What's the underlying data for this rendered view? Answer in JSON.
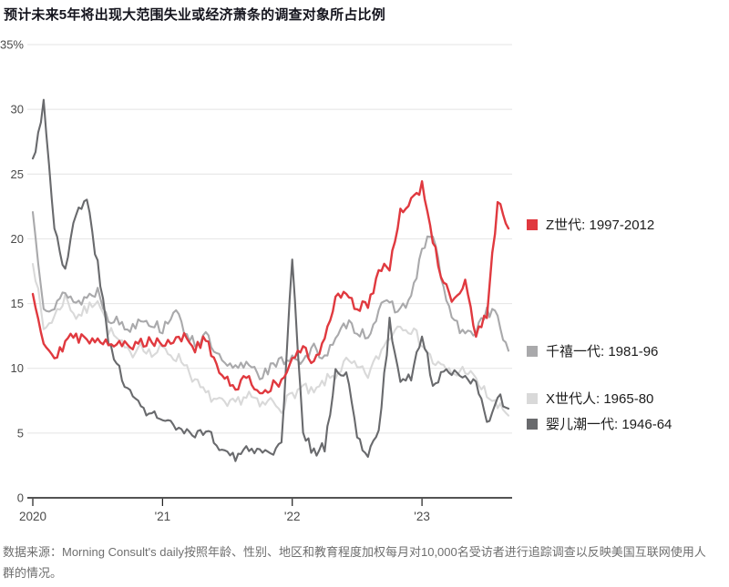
{
  "title": "预计未来5年将出现大范围失业或经济萧条的调查对象所占比例",
  "source_note": "数据来源：Morning Consult's daily按照年龄、性别、地区和教育程度加权每月对10,000名受访者进行追踪调查以反映美国互联网使用人群的情况。",
  "chart_data": {
    "type": "line",
    "title": "预计未来5年将出现大范围失业或经济萧条的调查对象所占比例",
    "x_unit": "month",
    "x_start": "2020-01",
    "x_tick_labels": [
      "2020",
      "'21",
      "'22",
      "'23"
    ],
    "x_tick_months": [
      0,
      12,
      24,
      36
    ],
    "ylim": [
      0,
      35
    ],
    "yticks": [
      0,
      5,
      10,
      15,
      20,
      25,
      30,
      35
    ],
    "y_top_label": "35%",
    "grid": true,
    "legend_position": "right",
    "axis_color": "#1a1a1a",
    "grid_color": "#e4e4e4",
    "label_color": "#4a4a4a",
    "series": [
      {
        "name": "Z世代: 1997-2012",
        "color": "#e0393f",
        "values": [
          16,
          12,
          11,
          12,
          12.5,
          12,
          12.5,
          12,
          12,
          11.5,
          12,
          12.2,
          12,
          12.2,
          12.5,
          11.5,
          12.3,
          10,
          9,
          8.5,
          9.5,
          8,
          8.5,
          9,
          10.5,
          11.5,
          10.5,
          12,
          15.5,
          16,
          14.5,
          15,
          17.5,
          18,
          22,
          23,
          24,
          20,
          16.5,
          15,
          16.5,
          12.5,
          14,
          23,
          21
        ]
      },
      {
        "name": "千禧一代: 1981-96",
        "color": "#a9a9ab",
        "values": [
          22,
          15,
          14.5,
          16,
          15,
          15.5,
          16,
          14,
          13.5,
          13,
          14,
          13.5,
          13,
          14.5,
          13,
          12,
          12.5,
          11,
          10,
          10,
          10.5,
          9.5,
          10,
          10.5,
          11,
          10.5,
          11.5,
          11,
          12,
          13.5,
          13,
          12.5,
          14.5,
          15,
          14.5,
          15.5,
          19,
          20.5,
          16,
          13.5,
          12.5,
          13,
          14.5,
          14,
          11
        ]
      },
      {
        "name": "X世代人: 1965-80",
        "color": "#d9d9d9",
        "values": [
          18.5,
          13,
          14,
          15.5,
          14,
          14.5,
          15.5,
          13,
          12,
          11,
          12,
          11,
          11.5,
          11,
          10.5,
          9,
          8,
          7.5,
          7,
          7.5,
          8,
          7,
          7.5,
          7,
          8,
          8.5,
          8,
          9,
          9.5,
          10.5,
          10,
          9.5,
          11,
          12.5,
          13.5,
          13,
          12,
          10.5,
          10,
          9.5,
          10,
          9,
          8,
          7,
          6.5
        ]
      },
      {
        "name": "婴儿潮一代: 1946-64",
        "color": "#696a6d",
        "values": [
          26,
          30.5,
          21,
          17.5,
          22,
          23,
          18,
          12,
          10,
          8,
          7,
          6.5,
          6,
          5.5,
          5,
          4.5,
          5.5,
          4,
          3.5,
          3,
          4,
          3.5,
          3,
          4,
          18.5,
          5,
          3.5,
          4,
          9.5,
          10,
          4.5,
          3.5,
          5,
          13.5,
          9,
          9.5,
          12.5,
          9,
          9.5,
          10,
          9.5,
          9,
          5.5,
          8,
          7
        ]
      }
    ]
  }
}
